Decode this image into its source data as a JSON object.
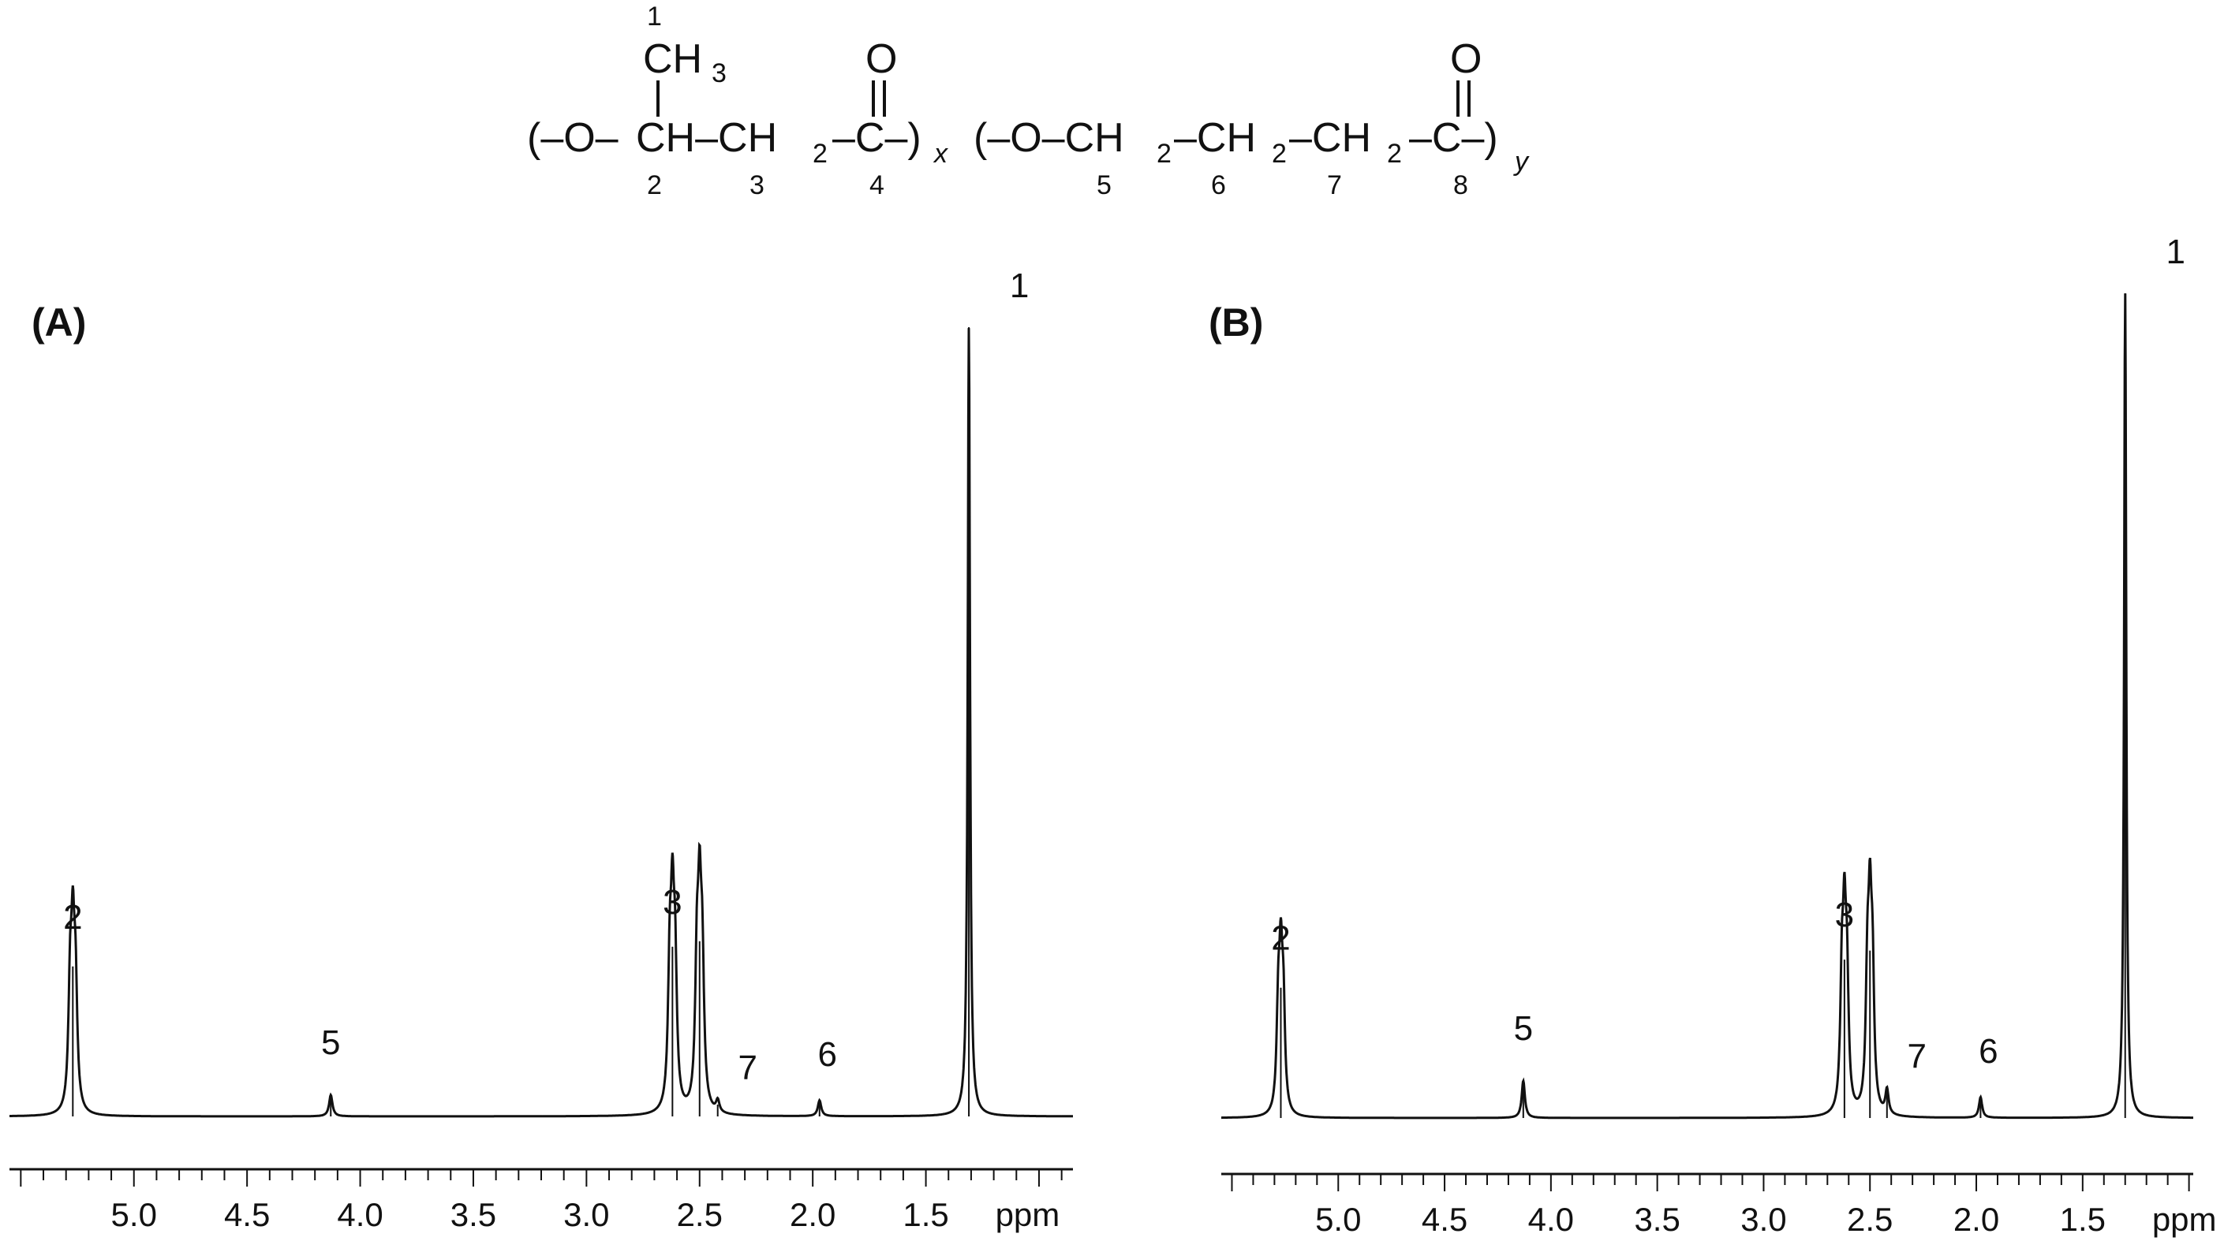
{
  "structure": {
    "lines": [
      {
        "id": "top_num",
        "text": "1"
      },
      {
        "id": "methyl",
        "text": "CH"
      },
      {
        "id": "methyl_sub",
        "text": "3"
      },
      {
        "id": "carbonyl_o1",
        "text": "O"
      },
      {
        "id": "carbonyl_o2",
        "text": "O"
      },
      {
        "id": "open1",
        "text": "(–O–"
      },
      {
        "id": "ch1",
        "text": "CH–CH"
      },
      {
        "id": "ch1_sub",
        "text": "2"
      },
      {
        "id": "c4",
        "text": "–C–)"
      },
      {
        "id": "x_sub",
        "text": "x"
      },
      {
        "id": "open2",
        "text": "(–O–CH"
      },
      {
        "id": "ch5_sub",
        "text": "2"
      },
      {
        "id": "ch6",
        "text": "–CH"
      },
      {
        "id": "ch6_sub",
        "text": "2"
      },
      {
        "id": "ch7",
        "text": "–CH"
      },
      {
        "id": "ch7_sub",
        "text": "2"
      },
      {
        "id": "c8",
        "text": "–C–)"
      },
      {
        "id": "y_sub",
        "text": "y"
      },
      {
        "id": "num2",
        "text": "2"
      },
      {
        "id": "num3",
        "text": "3"
      },
      {
        "id": "num4",
        "text": "4"
      },
      {
        "id": "num5",
        "text": "5"
      },
      {
        "id": "num6",
        "text": "6"
      },
      {
        "id": "num7",
        "text": "7"
      },
      {
        "id": "num8",
        "text": "8"
      }
    ]
  },
  "chart_data": [
    {
      "type": "line",
      "panel_label": "(A)",
      "x_unit": "ppm",
      "x_ticks": [
        "5.0",
        "4.5",
        "4.0",
        "3.5",
        "3.0",
        "2.5",
        "2.0",
        "1.5"
      ],
      "xlim": [
        5.55,
        0.85
      ],
      "x_reversed": true,
      "peaks": [
        {
          "ppm": 5.27,
          "height": 0.19,
          "label": "2"
        },
        {
          "ppm": 4.13,
          "height": 0.027,
          "label": "5"
        },
        {
          "ppm": 2.62,
          "height": 0.215,
          "label": "3"
        },
        {
          "ppm": 2.5,
          "height": 0.222,
          "label": ""
        },
        {
          "ppm": 2.42,
          "height": 0.015,
          "label": "7"
        },
        {
          "ppm": 1.97,
          "height": 0.02,
          "label": "6"
        },
        {
          "ppm": 1.31,
          "height": 1.0,
          "label": "1"
        }
      ],
      "annotations": [
        "2",
        "5",
        "3",
        "7",
        "6",
        "1"
      ]
    },
    {
      "type": "line",
      "panel_label": "(B)",
      "x_unit": "ppm",
      "x_ticks": [
        "5.0",
        "4.5",
        "4.0",
        "3.5",
        "3.0",
        "2.5",
        "2.0",
        "1.5"
      ],
      "xlim": [
        5.55,
        0.98
      ],
      "x_reversed": true,
      "peaks": [
        {
          "ppm": 5.27,
          "height": 0.158,
          "label": "2"
        },
        {
          "ppm": 4.13,
          "height": 0.045,
          "label": "5"
        },
        {
          "ppm": 2.62,
          "height": 0.192,
          "label": "3"
        },
        {
          "ppm": 2.5,
          "height": 0.203,
          "label": ""
        },
        {
          "ppm": 2.42,
          "height": 0.03,
          "label": "7"
        },
        {
          "ppm": 1.98,
          "height": 0.025,
          "label": "6"
        },
        {
          "ppm": 1.3,
          "height": 1.0,
          "label": "1"
        }
      ],
      "annotations": [
        "2",
        "5",
        "3",
        "7",
        "6",
        "1"
      ]
    }
  ]
}
